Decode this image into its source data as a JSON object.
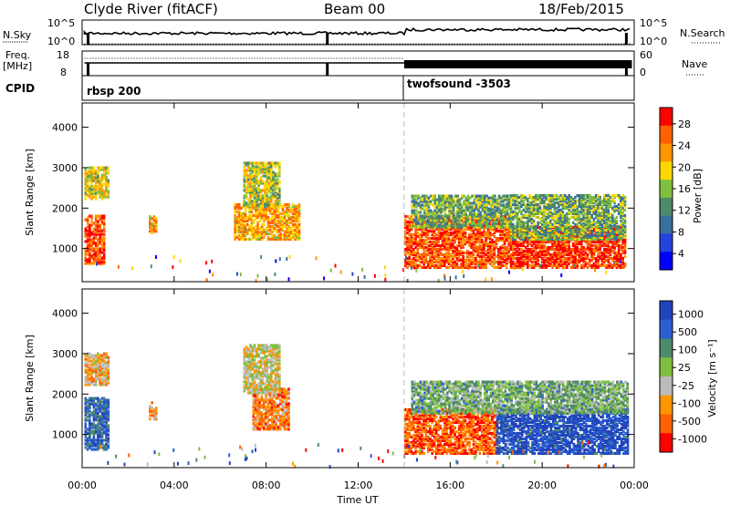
{
  "header": {
    "station": "Clyde River (fitACF)",
    "beam": "Beam 00",
    "date": "18/Feb/2015"
  },
  "top_panels": {
    "nsky_label": "N.Sky",
    "nsky_ticks": [
      "10^5",
      "10^0"
    ],
    "nsearch_label": "N.Search",
    "freq_label_1": "Freq.",
    "freq_label_2": "[MHz]",
    "freq_ticks": [
      "18",
      "8"
    ],
    "nave_label": "Nave",
    "nave_ticks": [
      "60",
      "0"
    ],
    "cpid_label": "CPID",
    "cpid_segments": [
      {
        "name": "rbsp 200",
        "start_hour": 0,
        "end_hour": 14
      },
      {
        "name": "twofsound -3503",
        "start_hour": 14,
        "end_hour": 24
      }
    ]
  },
  "colors": {
    "power": [
      "#0000ff",
      "#2244dd",
      "#3a6fa0",
      "#4e8a6a",
      "#7fbf3f",
      "#ffd700",
      "#ff9500",
      "#ff6000",
      "#ff0000"
    ],
    "velocity": [
      "#ff0000",
      "#ff6000",
      "#ff9500",
      "#bbbbbb",
      "#7fbf3f",
      "#4e8a6a",
      "#2a5fd0",
      "#2244bb"
    ],
    "divider": "#bbbbbb"
  },
  "chart_data": [
    {
      "type": "heatmap",
      "title": "Power",
      "xlabel": "Time UT",
      "ylabel": "Slant Range [km]",
      "x_range_hours": [
        0,
        24
      ],
      "x_ticks": [
        "00:00",
        "04:00",
        "08:00",
        "12:00",
        "16:00",
        "20:00",
        "00:00"
      ],
      "ylim": [
        180,
        4600
      ],
      "y_ticks": [
        1000,
        2000,
        3000,
        4000
      ],
      "colorbar_label": "Power [dB]",
      "colorbar_ticks": [
        "28",
        "24",
        "20",
        "16",
        "12",
        "8",
        "4"
      ],
      "colorbar_range": [
        0,
        30
      ],
      "regions": [
        {
          "t0": 0.1,
          "t1": 1.0,
          "r0": 600,
          "r1": 1800,
          "level": 0.85
        },
        {
          "t0": 0.1,
          "t1": 1.1,
          "r0": 2200,
          "r1": 3000,
          "level": 0.6
        },
        {
          "t0": 2.9,
          "t1": 3.2,
          "r0": 1350,
          "r1": 1800,
          "level": 0.7
        },
        {
          "t0": 6.6,
          "t1": 9.4,
          "r0": 1200,
          "r1": 2100,
          "level": 0.7
        },
        {
          "t0": 7.0,
          "t1": 8.6,
          "r0": 2000,
          "r1": 3100,
          "level": 0.55
        },
        {
          "t0": 14.0,
          "t1": 18.6,
          "r0": 500,
          "r1": 1800,
          "level": 0.85
        },
        {
          "t0": 14.3,
          "t1": 18.6,
          "r0": 1500,
          "r1": 2300,
          "level": 0.45
        },
        {
          "t0": 18.6,
          "t1": 23.6,
          "r0": 500,
          "r1": 1500,
          "level": 0.92
        },
        {
          "t0": 18.6,
          "t1": 23.6,
          "r0": 1200,
          "r1": 2300,
          "level": 0.45
        }
      ]
    },
    {
      "type": "heatmap",
      "title": "Velocity",
      "xlabel": "Time UT",
      "ylabel": "Slant Range [km]",
      "x_range_hours": [
        0,
        24
      ],
      "x_ticks": [
        "00:00",
        "04:00",
        "08:00",
        "12:00",
        "16:00",
        "20:00",
        "00:00"
      ],
      "ylim": [
        180,
        4600
      ],
      "y_ticks": [
        1000,
        2000,
        3000,
        4000
      ],
      "colorbar_label": "Velocity [m s⁻¹]",
      "colorbar_ticks": [
        "1000",
        "500",
        "100",
        "25",
        "-25",
        "-100",
        "-500",
        "-1000"
      ],
      "colorbar_range": [
        -1200,
        1200
      ],
      "regions": [
        {
          "t0": 0.1,
          "t1": 1.1,
          "r0": 600,
          "r1": 1900,
          "level": 0.82
        },
        {
          "t0": 0.1,
          "t1": 1.1,
          "r0": 2200,
          "r1": 3000,
          "level": 0.35
        },
        {
          "t0": 2.9,
          "t1": 3.2,
          "r0": 1350,
          "r1": 1800,
          "level": 0.3
        },
        {
          "t0": 7.4,
          "t1": 9.0,
          "r0": 1100,
          "r1": 2100,
          "level": 0.25
        },
        {
          "t0": 7.0,
          "t1": 8.6,
          "r0": 2000,
          "r1": 3200,
          "level": 0.45
        },
        {
          "t0": 14.0,
          "t1": 18.0,
          "r0": 500,
          "r1": 1600,
          "level": 0.18
        },
        {
          "t0": 18.0,
          "t1": 23.7,
          "r0": 500,
          "r1": 1600,
          "level": 0.9
        },
        {
          "t0": 14.3,
          "t1": 23.7,
          "r0": 1500,
          "r1": 2300,
          "level": 0.6
        }
      ]
    }
  ]
}
